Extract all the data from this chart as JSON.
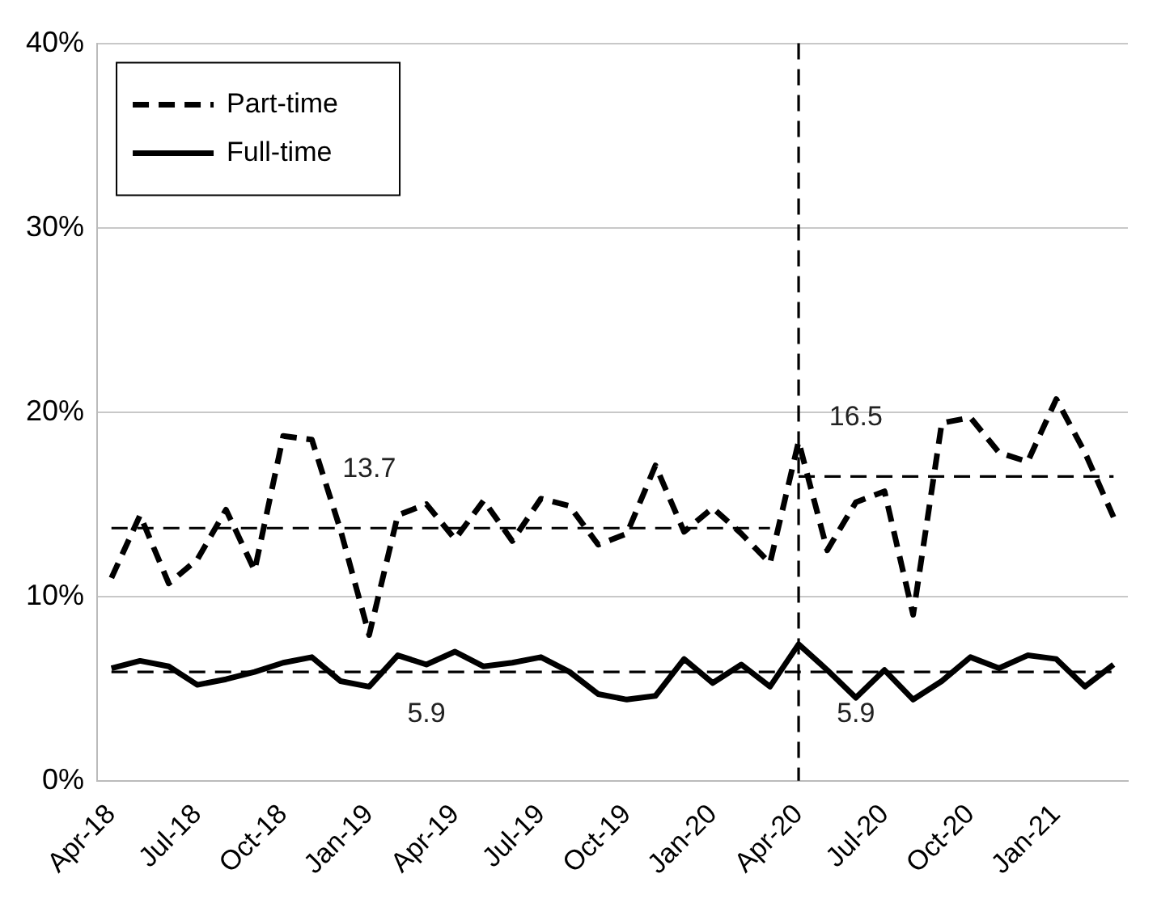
{
  "chart_data": {
    "type": "line",
    "categories": [
      "Apr-18",
      null,
      null,
      "Jul-18",
      null,
      null,
      "Oct-18",
      null,
      null,
      "Jan-19",
      null,
      null,
      "Apr-19",
      null,
      null,
      "Jul-19",
      null,
      null,
      "Oct-19",
      null,
      null,
      "Jan-20",
      null,
      null,
      "Apr-20",
      null,
      null,
      "Jul-20",
      null,
      null,
      "Oct-20",
      null,
      null,
      "Jan-21",
      null,
      null
    ],
    "series": [
      {
        "name": "Part-time",
        "color": "#000000",
        "line_style": "dashed",
        "values": [
          11.0,
          14.4,
          10.7,
          12.0,
          14.7,
          11.4,
          18.7,
          18.5,
          13.6,
          7.9,
          14.4,
          15.0,
          13.1,
          15.2,
          13.0,
          15.3,
          14.9,
          12.8,
          13.4,
          17.1,
          13.5,
          14.8,
          13.4,
          11.8,
          18.4,
          12.5,
          15.1,
          15.7,
          9.0,
          19.4,
          19.7,
          17.8,
          17.3,
          20.7,
          17.8,
          14.3
        ]
      },
      {
        "name": "Full-time",
        "color": "#000000",
        "line_style": "solid",
        "values": [
          6.1,
          6.5,
          6.2,
          5.2,
          5.5,
          5.9,
          6.4,
          6.7,
          5.4,
          5.1,
          6.8,
          6.3,
          7.0,
          6.2,
          6.4,
          6.7,
          5.9,
          4.7,
          4.4,
          4.6,
          6.6,
          5.3,
          6.3,
          5.1,
          7.4,
          6.0,
          4.5,
          6.0,
          4.4,
          5.4,
          6.7,
          6.1,
          6.8,
          6.6,
          5.1,
          6.3
        ]
      },
      {
        "color": "#000000",
        "line_style": "dashed",
        "values": [
          13.7,
          13.7,
          13.7,
          13.7,
          13.7,
          13.7,
          13.7,
          13.7,
          13.7,
          13.7,
          13.7,
          13.7,
          13.7,
          13.7,
          13.7,
          13.7,
          13.7,
          13.7,
          13.7,
          13.7,
          13.7,
          13.7,
          13.7,
          13.7,
          null,
          null,
          null,
          null,
          null,
          null,
          null,
          null,
          null,
          null,
          null,
          null
        ],
        "value_labels": [
          null,
          null,
          null,
          null,
          null,
          null,
          null,
          null,
          null,
          "13.7",
          null,
          null,
          null,
          null,
          null,
          null,
          null,
          null,
          null,
          null,
          null,
          null,
          null,
          null,
          null,
          null,
          null,
          null,
          null,
          null,
          null,
          null,
          null,
          null,
          null,
          null
        ]
      },
      {
        "color": "#000000",
        "line_style": "dashed",
        "values": [
          null,
          null,
          null,
          null,
          null,
          null,
          null,
          null,
          null,
          null,
          null,
          null,
          null,
          null,
          null,
          null,
          null,
          null,
          null,
          null,
          null,
          null,
          null,
          null,
          16.5,
          16.5,
          16.5,
          16.5,
          16.5,
          16.5,
          16.5,
          16.5,
          16.5,
          16.5,
          16.5,
          16.5
        ],
        "value_labels": [
          null,
          null,
          null,
          null,
          null,
          null,
          null,
          null,
          null,
          null,
          null,
          null,
          null,
          null,
          null,
          null,
          null,
          null,
          null,
          null,
          null,
          null,
          null,
          null,
          null,
          null,
          "16.5",
          null,
          null,
          null,
          null,
          null,
          null,
          null,
          null,
          null
        ]
      },
      {
        "color": "#000000",
        "line_style": "dashed",
        "values": [
          5.9,
          5.9,
          5.9,
          5.9,
          5.9,
          5.9,
          5.9,
          5.9,
          5.9,
          5.9,
          5.9,
          5.9,
          5.9,
          5.9,
          5.9,
          5.9,
          5.9,
          5.9,
          5.9,
          5.9,
          5.9,
          5.9,
          5.9,
          5.9,
          5.9,
          5.9,
          5.9,
          5.9,
          5.9,
          5.9,
          5.9,
          5.9,
          5.9,
          5.9,
          5.9,
          5.9
        ],
        "value_labels": [
          null,
          null,
          null,
          null,
          null,
          null,
          null,
          null,
          null,
          null,
          null,
          "5.9",
          null,
          null,
          null,
          null,
          null,
          null,
          null,
          null,
          null,
          null,
          null,
          null,
          null,
          null,
          "5.9",
          null,
          null,
          null,
          null,
          null,
          null,
          null,
          null,
          null
        ]
      }
    ],
    "ylim": [
      0,
      40
    ],
    "yticks": [
      {
        "value": 0,
        "label": "0%"
      },
      {
        "value": 10,
        "label": "10%"
      },
      {
        "value": 20,
        "label": "20%"
      },
      {
        "value": 30,
        "label": "30%"
      },
      {
        "value": 40,
        "label": "40%"
      }
    ],
    "ref_lines": [
      {
        "axis": "x",
        "value": "Apr-20",
        "color": "#000000",
        "line_style": "dashed"
      }
    ],
    "grid": "y",
    "legend": "top left",
    "marker": "none"
  }
}
